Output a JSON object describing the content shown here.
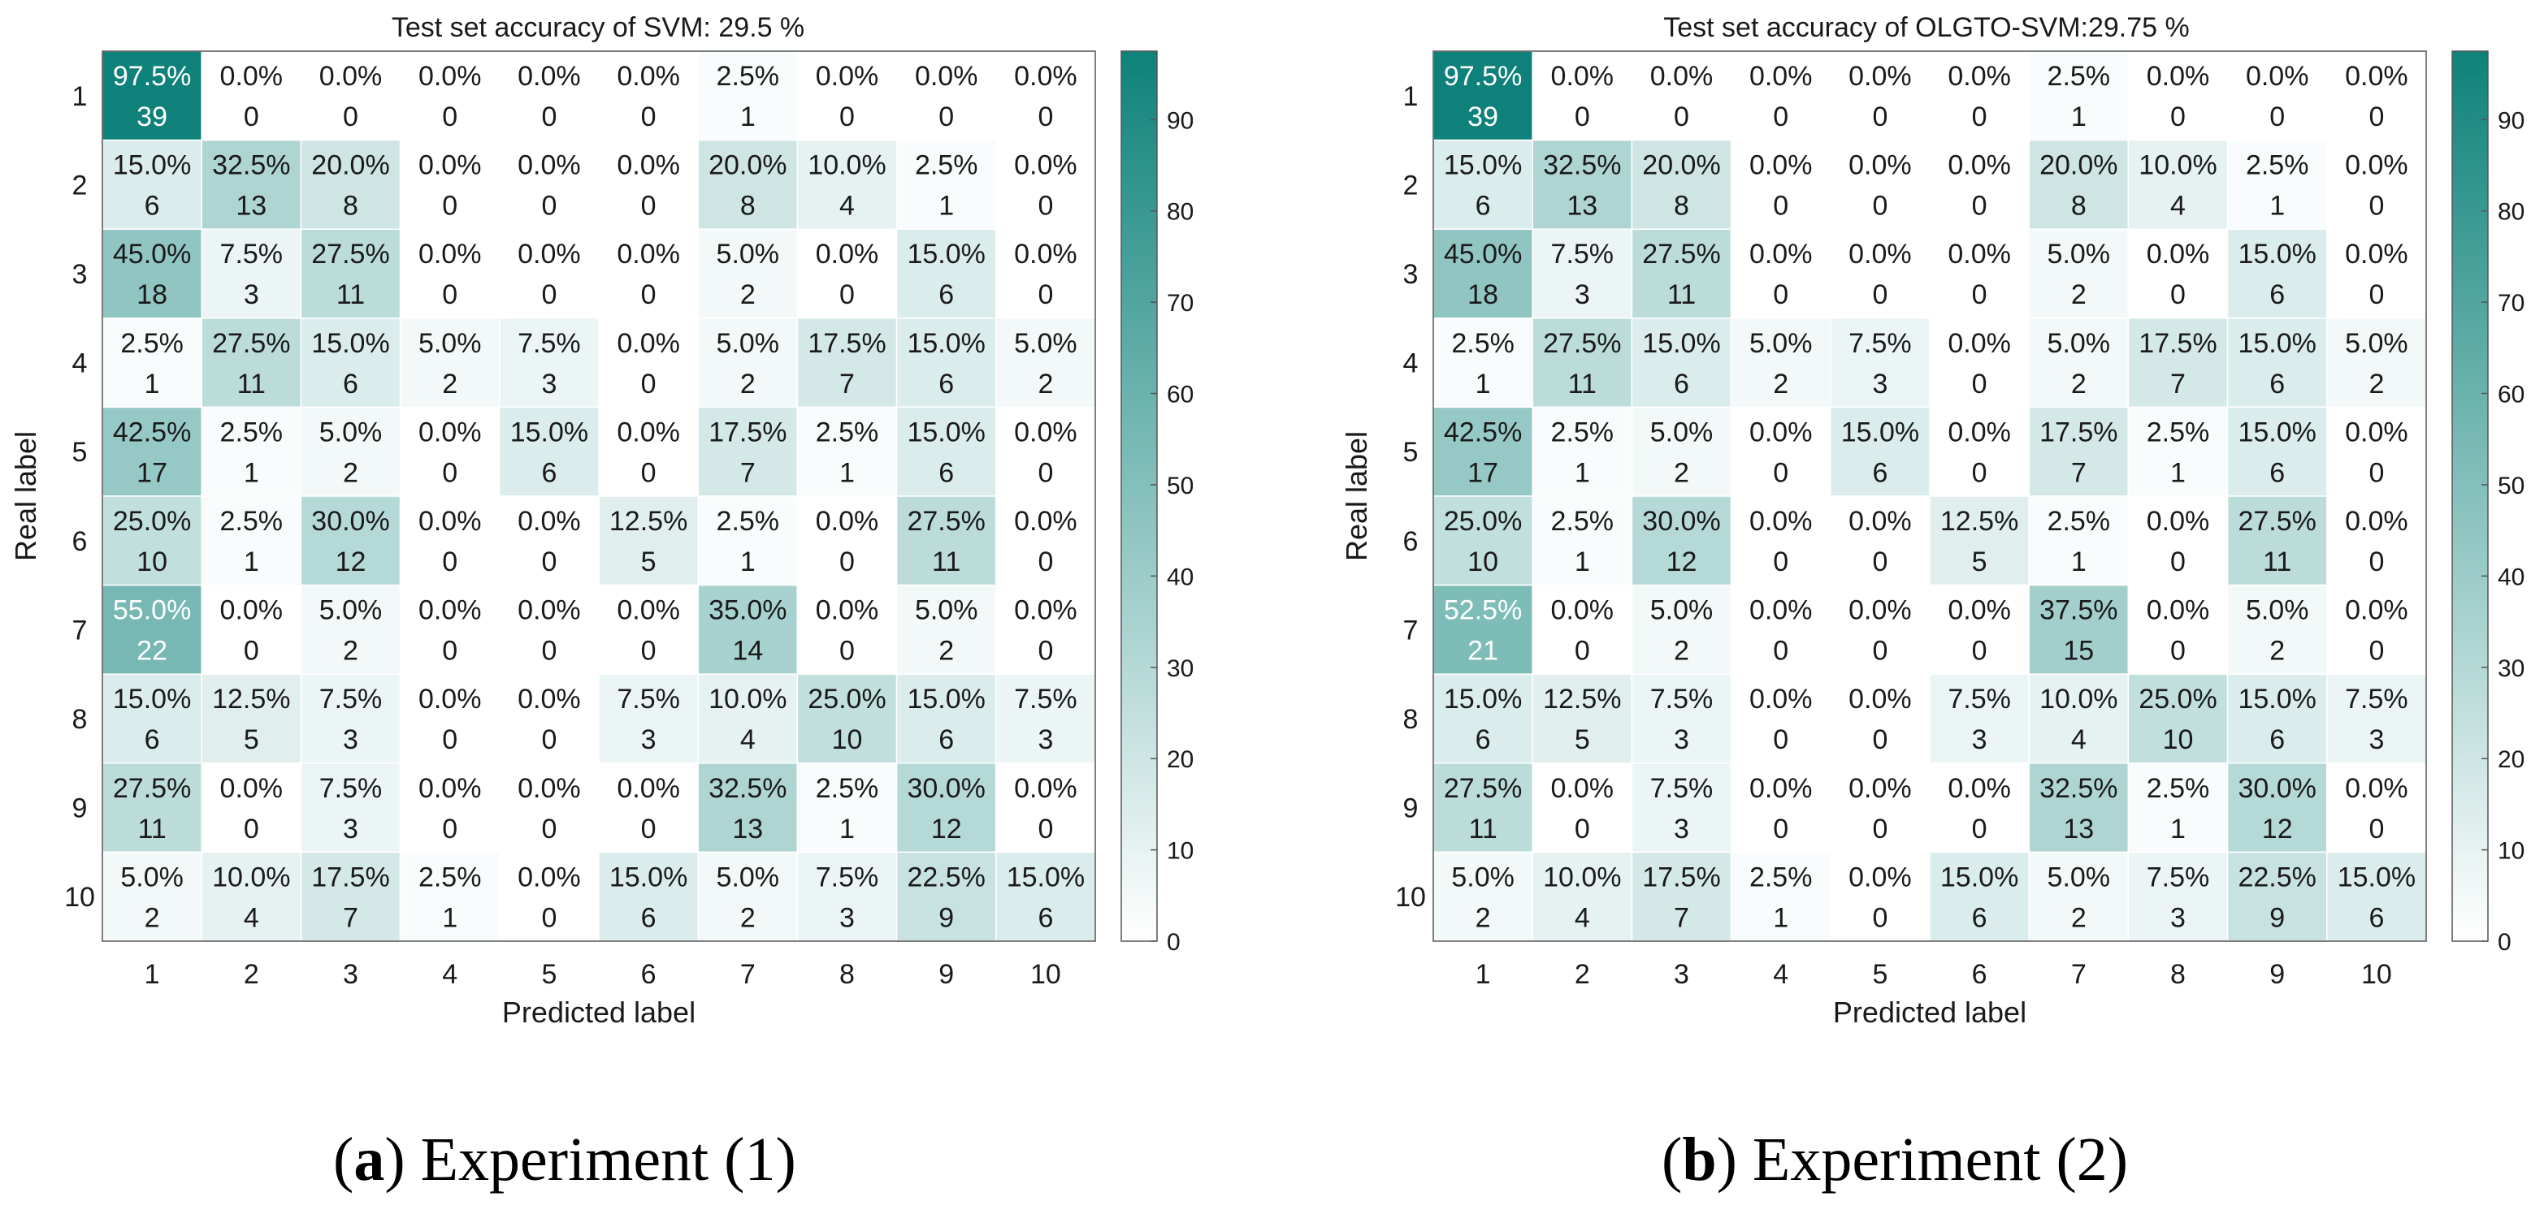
{
  "colors": {
    "max": "#0e827a",
    "min": "#ffffff",
    "text_dark": "#1a1a1a",
    "text_light": "#ffffff",
    "grid": "#ffffff",
    "frame": "#555555"
  },
  "colorbar_ticks": [
    "0",
    "10",
    "20",
    "30",
    "40",
    "50",
    "60",
    "70",
    "80",
    "90"
  ],
  "chart_data": [
    {
      "type": "heatmap",
      "title": "Test set accuracy of SVM: 29.5 %",
      "xlabel": "Predicted label",
      "ylabel": "Real label",
      "row_labels": [
        "1",
        "2",
        "3",
        "4",
        "5",
        "6",
        "7",
        "8",
        "9",
        "10"
      ],
      "col_labels": [
        "1",
        "2",
        "3",
        "4",
        "5",
        "6",
        "7",
        "8",
        "9",
        "10"
      ],
      "color_range": [
        0,
        97.5
      ],
      "percent_labels": [
        [
          "97.5%",
          "0.0%",
          "0.0%",
          "0.0%",
          "0.0%",
          "0.0%",
          "2.5%",
          "0.0%",
          "0.0%",
          "0.0%"
        ],
        [
          "15.0%",
          "32.5%",
          "20.0%",
          "0.0%",
          "0.0%",
          "0.0%",
          "20.0%",
          "10.0%",
          "2.5%",
          "0.0%"
        ],
        [
          "45.0%",
          "7.5%",
          "27.5%",
          "0.0%",
          "0.0%",
          "0.0%",
          "5.0%",
          "0.0%",
          "15.0%",
          "0.0%"
        ],
        [
          "2.5%",
          "27.5%",
          "15.0%",
          "5.0%",
          "7.5%",
          "0.0%",
          "5.0%",
          "17.5%",
          "15.0%",
          "5.0%"
        ],
        [
          "42.5%",
          "2.5%",
          "5.0%",
          "0.0%",
          "15.0%",
          "0.0%",
          "17.5%",
          "2.5%",
          "15.0%",
          "0.0%"
        ],
        [
          "25.0%",
          "2.5%",
          "30.0%",
          "0.0%",
          "0.0%",
          "12.5%",
          "2.5%",
          "0.0%",
          "27.5%",
          "0.0%"
        ],
        [
          "55.0%",
          "0.0%",
          "5.0%",
          "0.0%",
          "0.0%",
          "0.0%",
          "35.0%",
          "0.0%",
          "5.0%",
          "0.0%"
        ],
        [
          "15.0%",
          "12.5%",
          "7.5%",
          "0.0%",
          "0.0%",
          "7.5%",
          "10.0%",
          "25.0%",
          "15.0%",
          "7.5%"
        ],
        [
          "27.5%",
          "0.0%",
          "7.5%",
          "0.0%",
          "0.0%",
          "0.0%",
          "32.5%",
          "2.5%",
          "30.0%",
          "0.0%"
        ],
        [
          "5.0%",
          "10.0%",
          "17.5%",
          "2.5%",
          "0.0%",
          "15.0%",
          "5.0%",
          "7.5%",
          "22.5%",
          "15.0%"
        ]
      ],
      "counts": [
        [
          39,
          0,
          0,
          0,
          0,
          0,
          1,
          0,
          0,
          0
        ],
        [
          6,
          13,
          8,
          0,
          0,
          0,
          8,
          4,
          1,
          0
        ],
        [
          18,
          3,
          11,
          0,
          0,
          0,
          2,
          0,
          6,
          0
        ],
        [
          1,
          11,
          6,
          2,
          3,
          0,
          2,
          7,
          6,
          2
        ],
        [
          17,
          1,
          2,
          0,
          6,
          0,
          7,
          1,
          6,
          0
        ],
        [
          10,
          1,
          12,
          0,
          0,
          5,
          1,
          0,
          11,
          0
        ],
        [
          22,
          0,
          2,
          0,
          0,
          0,
          14,
          0,
          2,
          0
        ],
        [
          6,
          5,
          3,
          0,
          0,
          3,
          4,
          10,
          6,
          3
        ],
        [
          11,
          0,
          3,
          0,
          0,
          0,
          13,
          1,
          12,
          0
        ],
        [
          2,
          4,
          7,
          1,
          0,
          6,
          2,
          3,
          9,
          6
        ]
      ]
    },
    {
      "type": "heatmap",
      "title": "Test set accuracy of OLGTO-SVM:29.75 %",
      "xlabel": "Predicted label",
      "ylabel": "Real label",
      "row_labels": [
        "1",
        "2",
        "3",
        "4",
        "5",
        "6",
        "7",
        "8",
        "9",
        "10"
      ],
      "col_labels": [
        "1",
        "2",
        "3",
        "4",
        "5",
        "6",
        "7",
        "8",
        "9",
        "10"
      ],
      "color_range": [
        0,
        97.5
      ],
      "percent_labels": [
        [
          "97.5%",
          "0.0%",
          "0.0%",
          "0.0%",
          "0.0%",
          "0.0%",
          "2.5%",
          "0.0%",
          "0.0%",
          "0.0%"
        ],
        [
          "15.0%",
          "32.5%",
          "20.0%",
          "0.0%",
          "0.0%",
          "0.0%",
          "20.0%",
          "10.0%",
          "2.5%",
          "0.0%"
        ],
        [
          "45.0%",
          "7.5%",
          "27.5%",
          "0.0%",
          "0.0%",
          "0.0%",
          "5.0%",
          "0.0%",
          "15.0%",
          "0.0%"
        ],
        [
          "2.5%",
          "27.5%",
          "15.0%",
          "5.0%",
          "7.5%",
          "0.0%",
          "5.0%",
          "17.5%",
          "15.0%",
          "5.0%"
        ],
        [
          "42.5%",
          "2.5%",
          "5.0%",
          "0.0%",
          "15.0%",
          "0.0%",
          "17.5%",
          "2.5%",
          "15.0%",
          "0.0%"
        ],
        [
          "25.0%",
          "2.5%",
          "30.0%",
          "0.0%",
          "0.0%",
          "12.5%",
          "2.5%",
          "0.0%",
          "27.5%",
          "0.0%"
        ],
        [
          "52.5%",
          "0.0%",
          "5.0%",
          "0.0%",
          "0.0%",
          "0.0%",
          "37.5%",
          "0.0%",
          "5.0%",
          "0.0%"
        ],
        [
          "15.0%",
          "12.5%",
          "7.5%",
          "0.0%",
          "0.0%",
          "7.5%",
          "10.0%",
          "25.0%",
          "15.0%",
          "7.5%"
        ],
        [
          "27.5%",
          "0.0%",
          "7.5%",
          "0.0%",
          "0.0%",
          "0.0%",
          "32.5%",
          "2.5%",
          "30.0%",
          "0.0%"
        ],
        [
          "5.0%",
          "10.0%",
          "17.5%",
          "2.5%",
          "0.0%",
          "15.0%",
          "5.0%",
          "7.5%",
          "22.5%",
          "15.0%"
        ]
      ],
      "counts": [
        [
          39,
          0,
          0,
          0,
          0,
          0,
          1,
          0,
          0,
          0
        ],
        [
          6,
          13,
          8,
          0,
          0,
          0,
          8,
          4,
          1,
          0
        ],
        [
          18,
          3,
          11,
          0,
          0,
          0,
          2,
          0,
          6,
          0
        ],
        [
          1,
          11,
          6,
          2,
          3,
          0,
          2,
          7,
          6,
          2
        ],
        [
          17,
          1,
          2,
          0,
          6,
          0,
          7,
          1,
          6,
          0
        ],
        [
          10,
          1,
          12,
          0,
          0,
          5,
          1,
          0,
          11,
          0
        ],
        [
          21,
          0,
          2,
          0,
          0,
          0,
          15,
          0,
          2,
          0
        ],
        [
          6,
          5,
          3,
          0,
          0,
          3,
          4,
          10,
          6,
          3
        ],
        [
          11,
          0,
          3,
          0,
          0,
          0,
          13,
          1,
          12,
          0
        ],
        [
          2,
          4,
          7,
          1,
          0,
          6,
          2,
          3,
          9,
          6
        ]
      ]
    }
  ],
  "captions": [
    {
      "letter": "a",
      "text": "Experiment (1)"
    },
    {
      "letter": "b",
      "text": "Experiment (2)"
    }
  ]
}
